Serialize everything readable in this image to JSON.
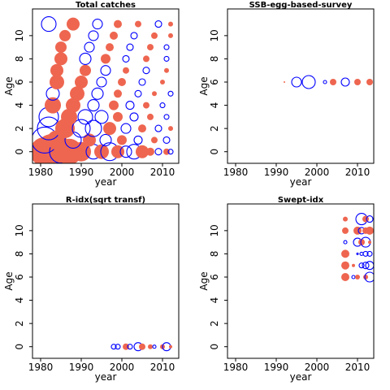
{
  "chart_data": [
    {
      "type": "scatter",
      "title": "Total catches",
      "xlabel": "year",
      "ylabel": "Age",
      "x_ticks": [
        1980,
        1990,
        2000,
        2010
      ],
      "y_ticks": [
        0,
        2,
        4,
        6,
        8,
        10
      ],
      "xlim": [
        1978,
        2014
      ],
      "ylim": [
        -1,
        12.3
      ],
      "legend": "none",
      "grid": false,
      "colors": {
        "positive": "#EE6650",
        "negative": "#0000FF"
      },
      "points": [
        {
          "x": 1981,
          "y": 0,
          "r": 18,
          "s": "pos"
        },
        {
          "x": 1983,
          "y": 0,
          "r": 22,
          "s": "pos"
        },
        {
          "x": 1985,
          "y": 0,
          "r": 14,
          "s": "neg"
        },
        {
          "x": 1987,
          "y": 0,
          "r": 16,
          "s": "pos"
        },
        {
          "x": 1990,
          "y": 0,
          "r": 12,
          "s": "pos"
        },
        {
          "x": 1993,
          "y": 0,
          "r": 9,
          "s": "neg"
        },
        {
          "x": 1995,
          "y": 0,
          "r": 9,
          "s": "pos"
        },
        {
          "x": 1997,
          "y": 0,
          "r": 11,
          "s": "neg"
        },
        {
          "x": 1999,
          "y": 0,
          "r": 8,
          "s": "pos"
        },
        {
          "x": 2001,
          "y": 0,
          "r": 7,
          "s": "neg"
        },
        {
          "x": 2003,
          "y": 0,
          "r": 9,
          "s": "neg"
        },
        {
          "x": 2005,
          "y": 0,
          "r": 8,
          "s": "pos"
        },
        {
          "x": 2007,
          "y": 0,
          "r": 5,
          "s": "pos"
        },
        {
          "x": 2009,
          "y": 0,
          "r": 4,
          "s": "neg"
        },
        {
          "x": 2011,
          "y": 0,
          "r": 4,
          "s": "pos"
        },
        {
          "x": 2012,
          "y": 0,
          "r": 3,
          "s": "neg"
        },
        {
          "x": 1981,
          "y": 1,
          "r": 16,
          "s": "neg"
        },
        {
          "x": 1984,
          "y": 1,
          "r": 12,
          "s": "pos"
        },
        {
          "x": 1988,
          "y": 1,
          "r": 10,
          "s": "neg"
        },
        {
          "x": 1992,
          "y": 1,
          "r": 8,
          "s": "pos"
        },
        {
          "x": 1996,
          "y": 1,
          "r": 7,
          "s": "neg"
        },
        {
          "x": 2000,
          "y": 1,
          "r": 6,
          "s": "pos"
        },
        {
          "x": 2004,
          "y": 1,
          "r": 5,
          "s": "neg"
        },
        {
          "x": 2008,
          "y": 1,
          "r": 4,
          "s": "pos"
        },
        {
          "x": 2011,
          "y": 1,
          "r": 4,
          "s": "neg"
        },
        {
          "x": 1982,
          "y": 2,
          "r": 14,
          "s": "neg"
        },
        {
          "x": 1986,
          "y": 2,
          "r": 12,
          "s": "pos"
        },
        {
          "x": 1990,
          "y": 2,
          "r": 11,
          "s": "neg"
        },
        {
          "x": 1993,
          "y": 2,
          "r": 10,
          "s": "neg"
        },
        {
          "x": 1997,
          "y": 2,
          "r": 8,
          "s": "pos"
        },
        {
          "x": 2001,
          "y": 2,
          "r": 6,
          "s": "neg"
        },
        {
          "x": 2005,
          "y": 2,
          "r": 5,
          "s": "pos"
        },
        {
          "x": 2009,
          "y": 2,
          "r": 4,
          "s": "neg"
        },
        {
          "x": 2012,
          "y": 2,
          "r": 3,
          "s": "pos"
        },
        {
          "x": 1982,
          "y": 3,
          "r": 12,
          "s": "neg"
        },
        {
          "x": 1987,
          "y": 3,
          "r": 10,
          "s": "pos"
        },
        {
          "x": 1991,
          "y": 3,
          "r": 9,
          "s": "neg"
        },
        {
          "x": 1995,
          "y": 3,
          "r": 8,
          "s": "neg"
        },
        {
          "x": 1999,
          "y": 3,
          "r": 6,
          "s": "pos"
        },
        {
          "x": 2003,
          "y": 3,
          "r": 5,
          "s": "neg"
        },
        {
          "x": 2007,
          "y": 3,
          "r": 4,
          "s": "pos"
        },
        {
          "x": 2011,
          "y": 3,
          "r": 3,
          "s": "neg"
        },
        {
          "x": 1983,
          "y": 4,
          "r": 10,
          "s": "pos"
        },
        {
          "x": 1988,
          "y": 4,
          "r": 9,
          "s": "pos"
        },
        {
          "x": 1993,
          "y": 4,
          "r": 7,
          "s": "neg"
        },
        {
          "x": 1998,
          "y": 4,
          "r": 6,
          "s": "pos"
        },
        {
          "x": 2002,
          "y": 4,
          "r": 5,
          "s": "neg"
        },
        {
          "x": 2006,
          "y": 4,
          "r": 4,
          "s": "pos"
        },
        {
          "x": 2010,
          "y": 4,
          "r": 3,
          "s": "neg"
        },
        {
          "x": 1983,
          "y": 5,
          "r": 8,
          "s": "neg"
        },
        {
          "x": 1989,
          "y": 5,
          "r": 9,
          "s": "pos"
        },
        {
          "x": 1994,
          "y": 5,
          "r": 7,
          "s": "neg"
        },
        {
          "x": 1999,
          "y": 5,
          "r": 5,
          "s": "pos"
        },
        {
          "x": 2004,
          "y": 5,
          "r": 4,
          "s": "neg"
        },
        {
          "x": 2008,
          "y": 5,
          "r": 3,
          "s": "pos"
        },
        {
          "x": 2012,
          "y": 5,
          "r": 3,
          "s": "neg"
        },
        {
          "x": 1984,
          "y": 6,
          "r": 9,
          "s": "pos"
        },
        {
          "x": 1990,
          "y": 6,
          "r": 8,
          "s": "pos"
        },
        {
          "x": 1995,
          "y": 6,
          "r": 6,
          "s": "neg"
        },
        {
          "x": 2000,
          "y": 6,
          "r": 5,
          "s": "pos"
        },
        {
          "x": 2005,
          "y": 6,
          "r": 4,
          "s": "neg"
        },
        {
          "x": 2010,
          "y": 6,
          "r": 3,
          "s": "pos"
        },
        {
          "x": 1984,
          "y": 7,
          "r": 8,
          "s": "pos"
        },
        {
          "x": 1991,
          "y": 7,
          "r": 7,
          "s": "pos"
        },
        {
          "x": 1996,
          "y": 7,
          "r": 6,
          "s": "neg"
        },
        {
          "x": 2001,
          "y": 7,
          "r": 4,
          "s": "pos"
        },
        {
          "x": 2006,
          "y": 7,
          "r": 4,
          "s": "neg"
        },
        {
          "x": 2011,
          "y": 7,
          "r": 3,
          "s": "pos"
        },
        {
          "x": 1985,
          "y": 8,
          "r": 8,
          "s": "pos"
        },
        {
          "x": 1991,
          "y": 8,
          "r": 7,
          "s": "neg"
        },
        {
          "x": 1996,
          "y": 8,
          "r": 6,
          "s": "pos"
        },
        {
          "x": 2001,
          "y": 8,
          "r": 4,
          "s": "neg"
        },
        {
          "x": 2006,
          "y": 8,
          "r": 4,
          "s": "pos"
        },
        {
          "x": 2011,
          "y": 8,
          "r": 3,
          "s": "neg"
        },
        {
          "x": 1985,
          "y": 9,
          "r": 7,
          "s": "pos"
        },
        {
          "x": 1992,
          "y": 9,
          "r": 6,
          "s": "neg"
        },
        {
          "x": 1997,
          "y": 9,
          "r": 5,
          "s": "pos"
        },
        {
          "x": 2002,
          "y": 9,
          "r": 4,
          "s": "neg"
        },
        {
          "x": 2007,
          "y": 9,
          "r": 4,
          "s": "pos"
        },
        {
          "x": 2011,
          "y": 9,
          "r": 3,
          "s": "neg"
        },
        {
          "x": 1986,
          "y": 10,
          "r": 7,
          "s": "pos"
        },
        {
          "x": 1993,
          "y": 10,
          "r": 6,
          "s": "neg"
        },
        {
          "x": 1998,
          "y": 10,
          "r": 5,
          "s": "pos"
        },
        {
          "x": 2003,
          "y": 10,
          "r": 4,
          "s": "neg"
        },
        {
          "x": 2008,
          "y": 10,
          "r": 4,
          "s": "pos"
        },
        {
          "x": 2012,
          "y": 10,
          "r": 3,
          "s": "pos"
        },
        {
          "x": 1982,
          "y": 11,
          "r": 9,
          "s": "neg"
        },
        {
          "x": 1988,
          "y": 11,
          "r": 8,
          "s": "pos"
        },
        {
          "x": 1994,
          "y": 11,
          "r": 6,
          "s": "neg"
        },
        {
          "x": 1999,
          "y": 11,
          "r": 5,
          "s": "pos"
        },
        {
          "x": 2004,
          "y": 11,
          "r": 4,
          "s": "pos"
        },
        {
          "x": 2009,
          "y": 11,
          "r": 4,
          "s": "neg"
        },
        {
          "x": 2012,
          "y": 11,
          "r": 3,
          "s": "pos"
        }
      ]
    },
    {
      "type": "scatter",
      "title": "SSB-egg-based-survey",
      "xlabel": "year",
      "ylabel": "Age",
      "x_ticks": [
        1980,
        1990,
        2000,
        2010
      ],
      "y_ticks": [
        0,
        2,
        4,
        6,
        8,
        10
      ],
      "xlim": [
        1978,
        2014
      ],
      "ylim": [
        -1,
        12.3
      ],
      "legend": "none",
      "grid": false,
      "colors": {
        "positive": "#EE6650",
        "negative": "#0000FF"
      },
      "points": [
        {
          "x": 1992,
          "y": 6,
          "r": 1,
          "s": "pos"
        },
        {
          "x": 1995,
          "y": 6,
          "r": 6,
          "s": "neg"
        },
        {
          "x": 1998,
          "y": 6,
          "r": 8,
          "s": "neg"
        },
        {
          "x": 2002,
          "y": 6,
          "r": 2,
          "s": "neg"
        },
        {
          "x": 2004,
          "y": 6,
          "r": 4,
          "s": "pos"
        },
        {
          "x": 2007,
          "y": 6,
          "r": 5,
          "s": "neg"
        },
        {
          "x": 2010,
          "y": 6,
          "r": 4,
          "s": "pos"
        },
        {
          "x": 2013,
          "y": 6,
          "r": 4,
          "s": "pos"
        }
      ]
    },
    {
      "type": "scatter",
      "title": "R-idx(sqrt transf)",
      "xlabel": "year",
      "ylabel": "Age",
      "x_ticks": [
        1980,
        1990,
        2000,
        2010
      ],
      "y_ticks": [
        0,
        2,
        4,
        6,
        8,
        10
      ],
      "xlim": [
        1978,
        2014
      ],
      "ylim": [
        -1,
        12.3
      ],
      "legend": "none",
      "grid": false,
      "colors": {
        "positive": "#EE6650",
        "negative": "#0000FF"
      },
      "points": [
        {
          "x": 1998,
          "y": 0,
          "r": 3,
          "s": "neg"
        },
        {
          "x": 1999,
          "y": 0,
          "r": 3,
          "s": "neg"
        },
        {
          "x": 2001,
          "y": 0,
          "r": 4,
          "s": "pos"
        },
        {
          "x": 2002,
          "y": 0,
          "r": 3,
          "s": "neg"
        },
        {
          "x": 2004,
          "y": 0,
          "r": 5,
          "s": "neg"
        },
        {
          "x": 2005,
          "y": 0,
          "r": 4,
          "s": "pos"
        },
        {
          "x": 2007,
          "y": 0,
          "r": 3,
          "s": "pos"
        },
        {
          "x": 2008,
          "y": 0,
          "r": 2,
          "s": "neg"
        },
        {
          "x": 2010,
          "y": 0,
          "r": 3,
          "s": "pos"
        },
        {
          "x": 2011,
          "y": 0,
          "r": 5,
          "s": "neg"
        },
        {
          "x": 2012,
          "y": 0,
          "r": 2,
          "s": "pos"
        }
      ]
    },
    {
      "type": "scatter",
      "title": "Swept-idx",
      "xlabel": "year",
      "ylabel": "Age",
      "x_ticks": [
        1980,
        1990,
        2000,
        2010
      ],
      "y_ticks": [
        0,
        2,
        4,
        6,
        8,
        10
      ],
      "xlim": [
        1978,
        2014
      ],
      "ylim": [
        -1,
        12.3
      ],
      "legend": "none",
      "grid": false,
      "colors": {
        "positive": "#EE6650",
        "negative": "#0000FF"
      },
      "points": [
        {
          "x": 2007,
          "y": 6,
          "r": 5,
          "s": "pos"
        },
        {
          "x": 2009,
          "y": 6,
          "r": 2,
          "s": "neg"
        },
        {
          "x": 2010,
          "y": 6,
          "r": 3,
          "s": "pos"
        },
        {
          "x": 2012,
          "y": 6,
          "r": 3,
          "s": "pos"
        },
        {
          "x": 2013,
          "y": 6,
          "r": 6,
          "s": "neg"
        },
        {
          "x": 2007,
          "y": 7,
          "r": 5,
          "s": "pos"
        },
        {
          "x": 2009,
          "y": 7,
          "r": 2,
          "s": "pos"
        },
        {
          "x": 2011,
          "y": 7,
          "r": 3,
          "s": "neg"
        },
        {
          "x": 2012,
          "y": 7,
          "r": 4,
          "s": "neg"
        },
        {
          "x": 2013,
          "y": 7,
          "r": 5,
          "s": "neg"
        },
        {
          "x": 2007,
          "y": 8,
          "r": 5,
          "s": "pos"
        },
        {
          "x": 2010,
          "y": 8,
          "r": 1,
          "s": "neg"
        },
        {
          "x": 2011,
          "y": 8,
          "r": 2,
          "s": "neg"
        },
        {
          "x": 2012,
          "y": 8,
          "r": 3,
          "s": "neg"
        },
        {
          "x": 2013,
          "y": 8,
          "r": 3,
          "s": "neg"
        },
        {
          "x": 2007,
          "y": 9,
          "r": 2,
          "s": "neg"
        },
        {
          "x": 2010,
          "y": 9,
          "r": 5,
          "s": "neg"
        },
        {
          "x": 2011,
          "y": 9,
          "r": 4,
          "s": "pos"
        },
        {
          "x": 2012,
          "y": 9,
          "r": 6,
          "s": "neg"
        },
        {
          "x": 2013,
          "y": 9,
          "r": 2,
          "s": "pos"
        },
        {
          "x": 2007,
          "y": 10,
          "r": 4,
          "s": "pos"
        },
        {
          "x": 2010,
          "y": 10,
          "r": 5,
          "s": "pos"
        },
        {
          "x": 2011,
          "y": 10,
          "r": 4,
          "s": "neg"
        },
        {
          "x": 2012,
          "y": 10,
          "r": 4,
          "s": "pos"
        },
        {
          "x": 2013,
          "y": 10,
          "r": 5,
          "s": "pos"
        },
        {
          "x": 2007,
          "y": 11,
          "r": 3,
          "s": "pos"
        },
        {
          "x": 2011,
          "y": 11,
          "r": 7,
          "s": "neg"
        },
        {
          "x": 2012,
          "y": 11,
          "r": 4,
          "s": "pos"
        },
        {
          "x": 2013,
          "y": 11,
          "r": 4,
          "s": "neg"
        }
      ]
    }
  ]
}
